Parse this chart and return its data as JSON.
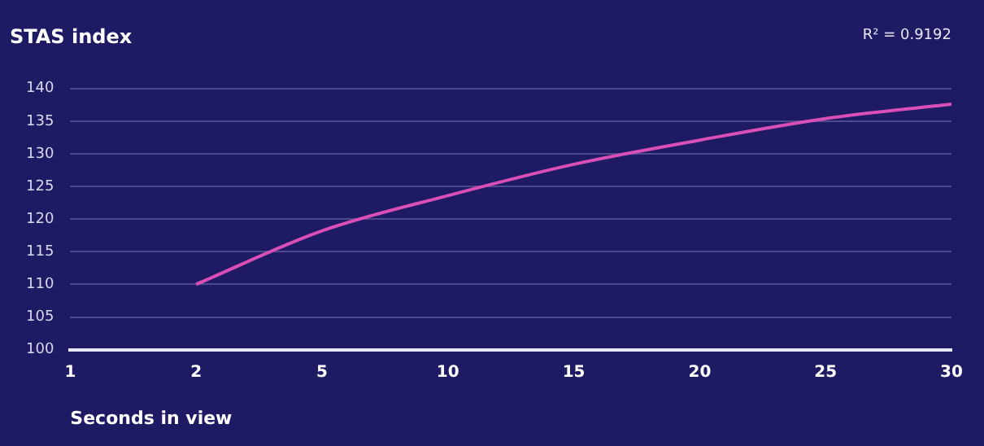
{
  "chart_data": {
    "type": "line",
    "title": "STAS index",
    "xlabel": "Seconds in view",
    "annotations": [
      "R² = 0.9192"
    ],
    "categories": [
      "1",
      "2",
      "5",
      "10",
      "15",
      "20",
      "25",
      "30"
    ],
    "series": [
      {
        "color": "#d94fb5",
        "values": [
          null,
          110,
          118.2,
          123.6,
          128.4,
          132.1,
          135.4,
          137.6
        ]
      }
    ],
    "ylim": [
      100,
      140
    ],
    "yticks": [
      100,
      105,
      110,
      115,
      120,
      125,
      130,
      135,
      140
    ],
    "grid": "y",
    "legend": false,
    "marker": "none",
    "line_style": "solid"
  }
}
